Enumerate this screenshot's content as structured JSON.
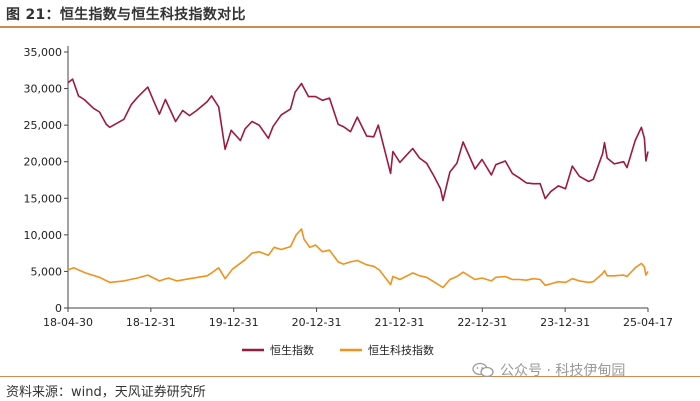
{
  "page_title": "图 21：恒生指数与恒生科技指数对比",
  "source_note": "资料来源：wind，天风证券研究所",
  "watermark": "公众号 · 科技伊甸园",
  "colors": {
    "accent_rule": "#cf8a52",
    "hsi": "#9b1b3d",
    "hstech": "#f0921e"
  },
  "chart_data": {
    "type": "line",
    "title": "",
    "xlabel": "",
    "ylabel": "",
    "ylim": [
      0,
      35000
    ],
    "y_ticks": [
      "0",
      "5,000",
      "10,000",
      "15,000",
      "20,000",
      "25,000",
      "30,000",
      "35,000"
    ],
    "x_ticks": [
      "18-04-30",
      "18-12-31",
      "19-12-31",
      "20-12-31",
      "21-12-31",
      "22-12-31",
      "23-12-31",
      "25-04-17"
    ],
    "xlim": [
      "2018-04-30",
      "2025-04-17"
    ],
    "grid": false,
    "legend_position": "bottom-center",
    "series": [
      {
        "name": "恒生指数",
        "color": "#9b1b3d",
        "points": [
          [
            "2018-04-30",
            30800
          ],
          [
            "2018-05-20",
            31300
          ],
          [
            "2018-06-15",
            29000
          ],
          [
            "2018-07-10",
            28500
          ],
          [
            "2018-08-20",
            27300
          ],
          [
            "2018-09-15",
            26800
          ],
          [
            "2018-10-15",
            25100
          ],
          [
            "2018-10-30",
            24700
          ],
          [
            "2018-12-31",
            25800
          ],
          [
            "2019-02-01",
            27800
          ],
          [
            "2019-03-01",
            28800
          ],
          [
            "2019-04-15",
            30200
          ],
          [
            "2019-05-15",
            28000
          ],
          [
            "2019-06-05",
            26500
          ],
          [
            "2019-07-01",
            28500
          ],
          [
            "2019-08-15",
            25500
          ],
          [
            "2019-09-15",
            27000
          ],
          [
            "2019-10-15",
            26300
          ],
          [
            "2019-11-15",
            27000
          ],
          [
            "2019-12-31",
            28200
          ],
          [
            "2020-01-20",
            29000
          ],
          [
            "2020-02-20",
            27500
          ],
          [
            "2020-03-19",
            21700
          ],
          [
            "2020-04-15",
            24300
          ],
          [
            "2020-05-25",
            22900
          ],
          [
            "2020-06-15",
            24500
          ],
          [
            "2020-07-15",
            25500
          ],
          [
            "2020-08-15",
            25000
          ],
          [
            "2020-09-25",
            23200
          ],
          [
            "2020-10-15",
            24800
          ],
          [
            "2020-11-20",
            26400
          ],
          [
            "2020-12-31",
            27200
          ],
          [
            "2021-01-20",
            29500
          ],
          [
            "2021-02-17",
            30700
          ],
          [
            "2021-03-20",
            28900
          ],
          [
            "2021-04-20",
            28900
          ],
          [
            "2021-05-20",
            28400
          ],
          [
            "2021-06-20",
            28700
          ],
          [
            "2021-07-28",
            25100
          ],
          [
            "2021-08-20",
            24800
          ],
          [
            "2021-09-20",
            24100
          ],
          [
            "2021-10-20",
            26100
          ],
          [
            "2021-11-30",
            23500
          ],
          [
            "2021-12-31",
            23400
          ],
          [
            "2022-01-20",
            25000
          ],
          [
            "2022-03-15",
            18400
          ],
          [
            "2022-03-25",
            21400
          ],
          [
            "2022-04-25",
            19900
          ],
          [
            "2022-05-15",
            20600
          ],
          [
            "2022-06-20",
            21800
          ],
          [
            "2022-07-20",
            20500
          ],
          [
            "2022-08-20",
            19800
          ],
          [
            "2022-09-20",
            18100
          ],
          [
            "2022-10-20",
            16300
          ],
          [
            "2022-10-31",
            14700
          ],
          [
            "2022-11-30",
            18600
          ],
          [
            "2022-12-31",
            19800
          ],
          [
            "2023-01-27",
            22700
          ],
          [
            "2023-03-20",
            19000
          ],
          [
            "2023-04-20",
            20300
          ],
          [
            "2023-05-31",
            18200
          ],
          [
            "2023-06-20",
            19600
          ],
          [
            "2023-07-31",
            20100
          ],
          [
            "2023-08-31",
            18400
          ],
          [
            "2023-09-30",
            17800
          ],
          [
            "2023-10-31",
            17100
          ],
          [
            "2023-11-30",
            17000
          ],
          [
            "2023-12-31",
            17000
          ],
          [
            "2024-01-22",
            14960
          ],
          [
            "2024-02-15",
            15900
          ],
          [
            "2024-03-20",
            16700
          ],
          [
            "2024-04-20",
            16300
          ],
          [
            "2024-05-20",
            19400
          ],
          [
            "2024-06-20",
            18000
          ],
          [
            "2024-07-31",
            17300
          ],
          [
            "2024-08-20",
            17600
          ],
          [
            "2024-09-30",
            21100
          ],
          [
            "2024-10-08",
            22600
          ],
          [
            "2024-10-20",
            20500
          ],
          [
            "2024-11-20",
            19700
          ],
          [
            "2024-12-31",
            20000
          ],
          [
            "2025-01-15",
            19200
          ],
          [
            "2025-02-20",
            22900
          ],
          [
            "2025-03-19",
            24700
          ],
          [
            "2025-04-01",
            23200
          ],
          [
            "2025-04-08",
            20100
          ],
          [
            "2025-04-17",
            21400
          ]
        ]
      },
      {
        "name": "恒生科技指数",
        "color": "#f0921e",
        "points": [
          [
            "2018-04-30",
            5200
          ],
          [
            "2018-05-25",
            5500
          ],
          [
            "2018-07-15",
            4800
          ],
          [
            "2018-09-15",
            4200
          ],
          [
            "2018-10-30",
            3500
          ],
          [
            "2018-12-31",
            3700
          ],
          [
            "2019-03-01",
            4100
          ],
          [
            "2019-04-15",
            4500
          ],
          [
            "2019-06-05",
            3700
          ],
          [
            "2019-07-15",
            4100
          ],
          [
            "2019-08-20",
            3700
          ],
          [
            "2019-10-15",
            4000
          ],
          [
            "2019-12-31",
            4400
          ],
          [
            "2020-01-20",
            4800
          ],
          [
            "2020-02-20",
            5500
          ],
          [
            "2020-03-19",
            4000
          ],
          [
            "2020-04-20",
            5300
          ],
          [
            "2020-06-15",
            6600
          ],
          [
            "2020-07-15",
            7500
          ],
          [
            "2020-08-15",
            7700
          ],
          [
            "2020-09-25",
            7200
          ],
          [
            "2020-10-20",
            8300
          ],
          [
            "2020-11-20",
            8000
          ],
          [
            "2020-12-31",
            8400
          ],
          [
            "2021-01-25",
            10000
          ],
          [
            "2021-02-17",
            10800
          ],
          [
            "2021-02-28",
            9400
          ],
          [
            "2021-03-25",
            8300
          ],
          [
            "2021-04-20",
            8600
          ],
          [
            "2021-05-20",
            7700
          ],
          [
            "2021-06-20",
            7900
          ],
          [
            "2021-07-28",
            6300
          ],
          [
            "2021-08-20",
            6000
          ],
          [
            "2021-09-20",
            6300
          ],
          [
            "2021-10-20",
            6500
          ],
          [
            "2021-11-30",
            5900
          ],
          [
            "2021-12-31",
            5700
          ],
          [
            "2022-01-25",
            5200
          ],
          [
            "2022-03-15",
            3200
          ],
          [
            "2022-03-25",
            4300
          ],
          [
            "2022-04-25",
            3900
          ],
          [
            "2022-06-20",
            4800
          ],
          [
            "2022-07-20",
            4400
          ],
          [
            "2022-08-20",
            4200
          ],
          [
            "2022-09-20",
            3600
          ],
          [
            "2022-10-31",
            2800
          ],
          [
            "2022-11-30",
            3900
          ],
          [
            "2022-12-31",
            4300
          ],
          [
            "2023-01-27",
            4900
          ],
          [
            "2023-03-20",
            3900
          ],
          [
            "2023-04-20",
            4100
          ],
          [
            "2023-05-31",
            3700
          ],
          [
            "2023-06-20",
            4200
          ],
          [
            "2023-07-31",
            4300
          ],
          [
            "2023-08-31",
            3900
          ],
          [
            "2023-09-30",
            3900
          ],
          [
            "2023-10-31",
            3800
          ],
          [
            "2023-11-30",
            4000
          ],
          [
            "2023-12-31",
            3900
          ],
          [
            "2024-01-22",
            3100
          ],
          [
            "2024-02-15",
            3300
          ],
          [
            "2024-03-20",
            3600
          ],
          [
            "2024-04-20",
            3500
          ],
          [
            "2024-05-20",
            4000
          ],
          [
            "2024-06-20",
            3700
          ],
          [
            "2024-07-31",
            3500
          ],
          [
            "2024-08-20",
            3600
          ],
          [
            "2024-09-30",
            4700
          ],
          [
            "2024-10-08",
            5100
          ],
          [
            "2024-10-20",
            4400
          ],
          [
            "2024-11-20",
            4400
          ],
          [
            "2024-12-31",
            4500
          ],
          [
            "2025-01-15",
            4300
          ],
          [
            "2025-02-20",
            5500
          ],
          [
            "2025-03-19",
            6100
          ],
          [
            "2025-04-01",
            5600
          ],
          [
            "2025-04-08",
            4500
          ],
          [
            "2025-04-17",
            5000
          ]
        ]
      }
    ]
  }
}
